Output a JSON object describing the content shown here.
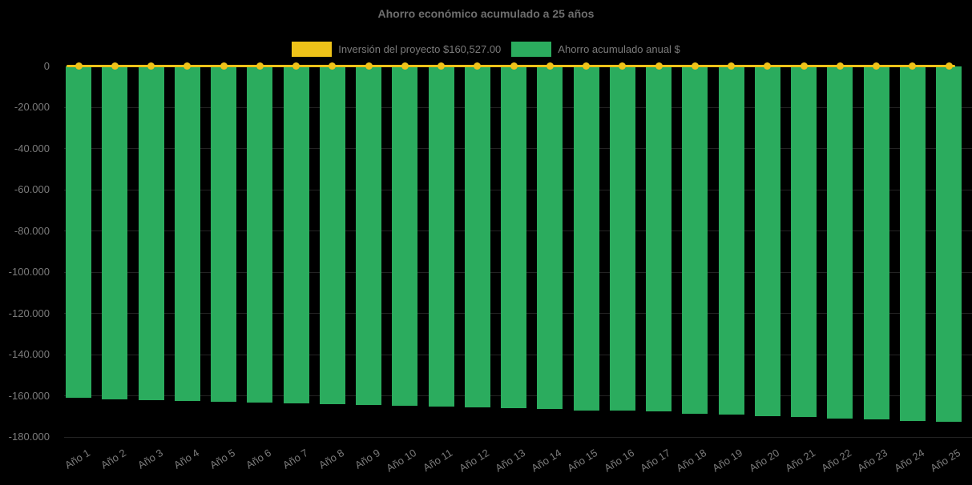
{
  "background_color": "#000000",
  "colors": {
    "title_text": "#6e6e6e",
    "axis_text": "#7b7b7b",
    "gridline": "#232323",
    "investment_yellow": "#EFC319",
    "savings_green": "#2BAC5E"
  },
  "chart_data": {
    "type": "bar",
    "title": "Ahorro económico acumulado a 25 años",
    "xlabel": "",
    "ylabel": "",
    "categories": [
      "Año 1",
      "Año 2",
      "Año 3",
      "Año 4",
      "Año 5",
      "Año 6",
      "Año 7",
      "Año 8",
      "Año 9",
      "Año 10",
      "Año 11",
      "Año 12",
      "Año 13",
      "Año 14",
      "Año 15",
      "Año 16",
      "Año 17",
      "Año 18",
      "Año 19",
      "Año 20",
      "Año 21",
      "Año 22",
      "Año 23",
      "Año 24",
      "Año 25"
    ],
    "series": [
      {
        "name": "Inversión del proyecto $160,527.00",
        "type": "line",
        "color": "#EFC319",
        "values": [
          0,
          0,
          0,
          0,
          0,
          0,
          0,
          0,
          0,
          0,
          0,
          0,
          0,
          0,
          0,
          0,
          0,
          0,
          0,
          0,
          0,
          0,
          0,
          0,
          0
        ]
      },
      {
        "name": "Ahorro acumulado anual $",
        "type": "bar",
        "color": "#2BAC5E",
        "values": [
          -161100,
          -161900,
          -162200,
          -162500,
          -162900,
          -163200,
          -163500,
          -163900,
          -164300,
          -164700,
          -165100,
          -165500,
          -166000,
          -166600,
          -167000,
          -167300,
          -167700,
          -168600,
          -169300,
          -169800,
          -170200,
          -171000,
          -171300,
          -172200,
          -172600
        ]
      }
    ],
    "ylim": [
      -180000,
      0
    ],
    "yticks": [
      {
        "value": 0,
        "label": "0"
      },
      {
        "value": -20000,
        "label": "-20.000"
      },
      {
        "value": -40000,
        "label": "-40.000"
      },
      {
        "value": -60000,
        "label": "-60.000"
      },
      {
        "value": -80000,
        "label": "-80.000"
      },
      {
        "value": -100000,
        "label": "-100.000"
      },
      {
        "value": -120000,
        "label": "-120.000"
      },
      {
        "value": -140000,
        "label": "-140.000"
      },
      {
        "value": -160000,
        "label": "-160.000"
      },
      {
        "value": -180000,
        "label": "-180.000"
      }
    ],
    "grid": true,
    "legend_position": "top",
    "xtick_rotation": 32
  }
}
